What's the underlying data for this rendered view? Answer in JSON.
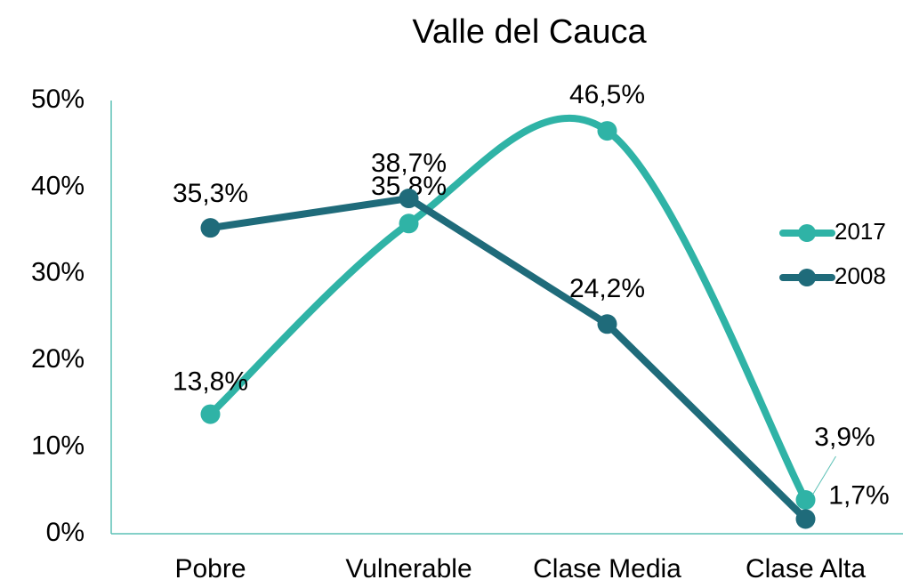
{
  "chart_data": {
    "type": "line",
    "title": "Valle del Cauca",
    "categories": [
      "Pobre",
      "Vulnerable",
      "Clase Media",
      "Clase Alta"
    ],
    "series": [
      {
        "name": "2017",
        "color": "#2fb3a6",
        "smooth": true,
        "values": [
          13.8,
          35.8,
          46.5,
          3.9
        ],
        "value_labels": [
          "13,8%",
          "35,8%",
          "46,5%",
          "3,9%"
        ]
      },
      {
        "name": "2008",
        "color": "#1f6b7a",
        "smooth": false,
        "values": [
          35.3,
          38.7,
          24.2,
          1.7
        ],
        "value_labels": [
          "35,3%",
          "38,7%",
          "24,2%",
          "1,7%"
        ]
      }
    ],
    "ylim": [
      0,
      50
    ],
    "yticks": [
      {
        "value": 0,
        "label": "0%"
      },
      {
        "value": 10,
        "label": "10%"
      },
      {
        "value": 20,
        "label": "20%"
      },
      {
        "value": 30,
        "label": "30%"
      },
      {
        "value": 40,
        "label": "40%"
      },
      {
        "value": 50,
        "label": "50%"
      }
    ],
    "grid": false,
    "legend": "right"
  }
}
